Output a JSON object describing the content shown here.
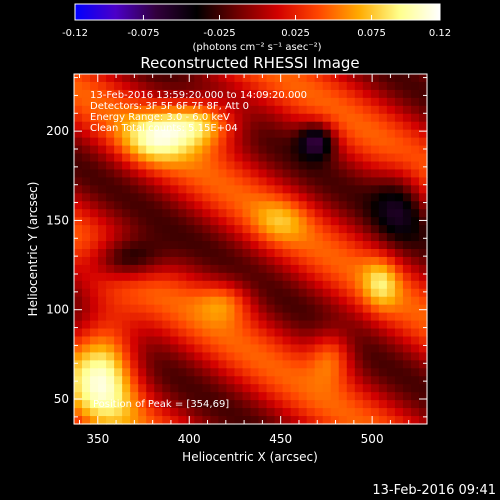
{
  "colorbar": {
    "ticks": [
      "-0.12",
      "-0.075",
      "-0.025",
      "0.025",
      "0.075",
      "0.12"
    ],
    "unit_label": "(photons cm⁻² s⁻¹ asec⁻²)",
    "range": [
      -0.12,
      0.12
    ],
    "colors": [
      "#0000ff",
      "#4b00c8",
      "#32003c",
      "#000000",
      "#6e0000",
      "#d20000",
      "#ff4600",
      "#ffaa00",
      "#ffff8c",
      "#ffffff"
    ]
  },
  "chart_data": {
    "type": "heatmap",
    "title": "Reconstructed RHESSI Image",
    "xlabel": "Heliocentric X (arcsec)",
    "ylabel": "Heliocentric Y (arcsec)",
    "xlim": [
      337,
      530
    ],
    "ylim": [
      36,
      232
    ],
    "xticks": [
      350,
      400,
      450,
      500
    ],
    "yticks": [
      50,
      100,
      150,
      200
    ],
    "annotations": [
      "13-Feb-2016 13:59:20.000 to 14:09:20.000",
      "Detectors: 3F 5F 6F 7F 8F, Att 0",
      "Energy Range: 3.0 - 6.0 keV",
      "Clean     Total counts: 5.15E+04"
    ],
    "peak_label": "Position of Peak = [354,69]",
    "peak": [
      354,
      69
    ]
  },
  "footer_timestamp": "13-Feb-2016 09:41"
}
